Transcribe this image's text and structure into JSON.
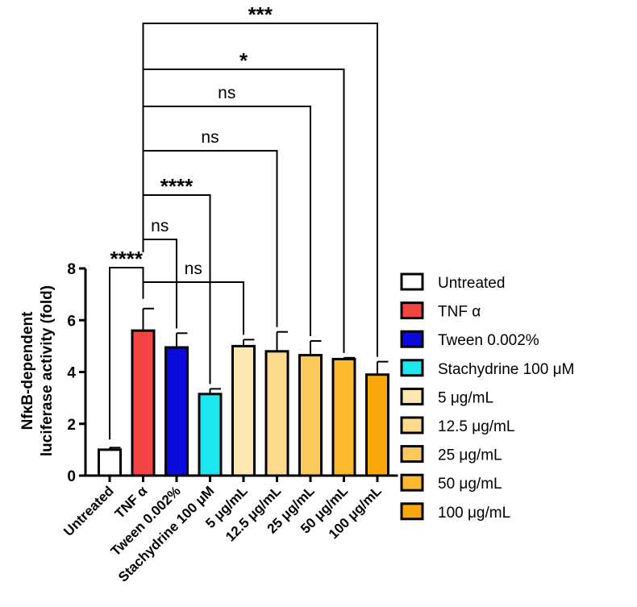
{
  "chart_data": {
    "type": "bar",
    "title": "",
    "xlabel": "",
    "ylabel_lines": [
      "NfκB-dependent",
      "luciferase activity (fold)"
    ],
    "ylim": [
      0,
      8
    ],
    "yticks": [
      "0",
      "2",
      "4",
      "6",
      "8"
    ],
    "grid": false,
    "legend_position": "right",
    "categories": [
      "Untreated",
      "TNF α",
      "Tween 0.002%",
      "Stachydrine 100 μM",
      "5 μg/mL",
      "12.5 μg/mL",
      "25 μg/mL",
      "50 μg/mL",
      "100 μg/mL"
    ],
    "values": [
      1.0,
      5.6,
      4.95,
      3.15,
      5.0,
      4.8,
      4.65,
      4.5,
      3.9
    ],
    "errors": [
      0.08,
      0.85,
      0.55,
      0.2,
      0.25,
      0.75,
      0.55,
      0.05,
      0.5
    ],
    "colors": [
      "#ffffff",
      "#f54444",
      "#0a0adc",
      "#1ee6f0",
      "#fde8b2",
      "#fcd98c",
      "#fbc95e",
      "#fab92e",
      "#f9a70a"
    ],
    "significance": [
      {
        "from": 0,
        "to": 1,
        "label": "****"
      },
      {
        "from": 1,
        "to": 4,
        "label": "ns"
      },
      {
        "from": 1,
        "to": 2,
        "label": "ns"
      },
      {
        "from": 1,
        "to": 3,
        "label": "****"
      },
      {
        "from": 1,
        "to": 5,
        "label": "ns"
      },
      {
        "from": 1,
        "to": 6,
        "label": "ns"
      },
      {
        "from": 1,
        "to": 7,
        "label": "*"
      },
      {
        "from": 1,
        "to": 8,
        "label": "***"
      }
    ]
  }
}
